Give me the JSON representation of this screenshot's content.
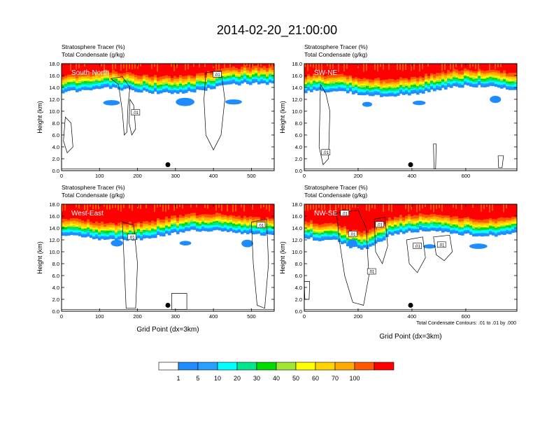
{
  "title": "2014-02-20_21:00:00",
  "colors": {
    "levels": [
      "#ffffff",
      "#1e8cff",
      "#28a0ff",
      "#00ffff",
      "#00e68c",
      "#00dc00",
      "#a0e632",
      "#ffff00",
      "#ffd200",
      "#ffaa00",
      "#ff5a00",
      "#ff0000"
    ],
    "text_on_panel": "#ffffff",
    "contour": "#000000",
    "marker": "#000000"
  },
  "colorbar": {
    "labels": [
      "1",
      "5",
      "10",
      "20",
      "30",
      "40",
      "50",
      "60",
      "70",
      "100"
    ]
  },
  "footnote": "Total Condensate Contours: .01 to .01 by .000",
  "chart_data": [
    {
      "type": "heatmap",
      "name": "South-North",
      "subtitle_line1": "Stratosphere Tracer   (%)",
      "subtitle_line2": "Total Condensate   (g/kg)",
      "ylabel": "Height (km)",
      "xlabel": "",
      "ylim": [
        0,
        18
      ],
      "xlim": [
        0,
        560
      ],
      "yticks": [
        "0.0",
        "2.0",
        "4.0",
        "6.0",
        "8.0",
        "10.0",
        "12.0",
        "14.0",
        "16.0",
        "18.0"
      ],
      "xticks": [
        0,
        100,
        200,
        300,
        400,
        500
      ],
      "tropopause_km": 14.8,
      "marker": {
        "x": 280,
        "y": 1.0
      },
      "contour_labels": [
        {
          "text": ".01",
          "x": 410,
          "y": 16.2
        },
        {
          "text": ".01",
          "x": 195,
          "y": 9.8
        }
      ]
    },
    {
      "type": "heatmap",
      "name": "SW-NE",
      "subtitle_line1": "Stratosphere Tracer   (%)",
      "subtitle_line2": "Total Condensate   (g/kg)",
      "ylabel": "Height (km)",
      "xlabel": "",
      "ylim": [
        0,
        18
      ],
      "xlim": [
        0,
        790
      ],
      "yticks": [
        "0.0",
        "2.0",
        "4.0",
        "6.0",
        "8.0",
        "10.0",
        "12.0",
        "14.0",
        "16.0",
        "18.0"
      ],
      "xticks": [
        0,
        200,
        400,
        600
      ],
      "tropopause_km": 14.5,
      "marker": {
        "x": 395,
        "y": 1.0
      },
      "contour_labels": [
        {
          "text": ".01",
          "x": 80,
          "y": 3.1
        }
      ]
    },
    {
      "type": "heatmap",
      "name": "West-East",
      "subtitle_line1": "Stratosphere Tracer   (%)",
      "subtitle_line2": "Total Condensate   (g/kg)",
      "ylabel": "Height (km)",
      "xlabel": "Grid Point (dx=3km)",
      "ylim": [
        0,
        18
      ],
      "xlim": [
        0,
        560
      ],
      "yticks": [
        "0.0",
        "2.0",
        "4.0",
        "6.0",
        "8.0",
        "10.0",
        "12.0",
        "14.0",
        "16.0",
        "18.0"
      ],
      "xticks": [
        0,
        100,
        200,
        300,
        400,
        500
      ],
      "tropopause_km": 14.0,
      "marker": {
        "x": 280,
        "y": 1.0
      },
      "contour_labels": [
        {
          "text": ".01",
          "x": 185,
          "y": 12.5
        },
        {
          "text": ".01",
          "x": 525,
          "y": 14.5
        }
      ]
    },
    {
      "type": "heatmap",
      "name": "NW-SE",
      "subtitle_line1": "Stratosphere Tracer   (%)",
      "subtitle_line2": "Total Condensate   (g/kg)",
      "ylabel": "Height (km)",
      "xlabel": "Grid Point (dx=3km)",
      "ylim": [
        0,
        18
      ],
      "xlim": [
        0,
        790
      ],
      "yticks": [
        "0.0",
        "2.0",
        "4.0",
        "6.0",
        "8.0",
        "10.0",
        "12.0",
        "14.0",
        "16.0",
        "18.0"
      ],
      "xticks": [
        0,
        200,
        400,
        600
      ],
      "tropopause_km": 14.0,
      "marker": {
        "x": 395,
        "y": 1.0
      },
      "contour_labels": [
        {
          "text": ".01",
          "x": 150,
          "y": 16.5
        },
        {
          "text": ".01",
          "x": 180,
          "y": 13.0
        },
        {
          "text": ".01",
          "x": 280,
          "y": 14.6
        },
        {
          "text": ".01",
          "x": 420,
          "y": 11.0
        },
        {
          "text": ".01",
          "x": 510,
          "y": 11.2
        },
        {
          "text": ".01",
          "x": 250,
          "y": 6.7
        }
      ]
    }
  ]
}
